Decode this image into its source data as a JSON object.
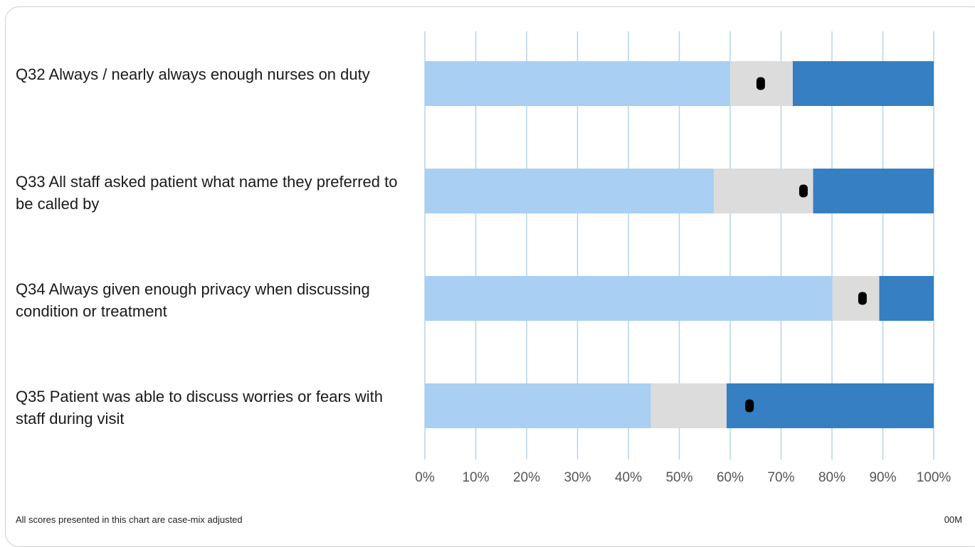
{
  "chart_data": {
    "type": "bar",
    "stacked": true,
    "orientation": "horizontal",
    "categories": [
      "Q32 Always / nearly always enough nurses on duty",
      "Q33 All staff asked patient what name they preferred to be called by",
      "Q34 Always given enough privacy when discussing condition or treatment",
      "Q35 Patient was able to discuss worries or fears with staff during visit"
    ],
    "segments": [
      {
        "lower": 0,
        "middle_start": 60,
        "upper_start": 72.3,
        "end": 100,
        "point": 66
      },
      {
        "lower": 0,
        "middle_start": 56.8,
        "upper_start": 76.3,
        "end": 100,
        "point": 74.4
      },
      {
        "lower": 0,
        "middle_start": 80.1,
        "upper_start": 89.3,
        "end": 100,
        "point": 86
      },
      {
        "lower": 0,
        "middle_start": 44.4,
        "upper_start": 59.3,
        "end": 100,
        "point": 63.8
      }
    ],
    "x_ticks": [
      "0%",
      "10%",
      "20%",
      "30%",
      "40%",
      "50%",
      "60%",
      "70%",
      "80%",
      "90%",
      "100%"
    ],
    "xlim": [
      0,
      100
    ],
    "grid": true,
    "colors": {
      "lower": "#a9cff3",
      "middle": "#dcdcdc",
      "upper": "#357fc2",
      "point": "#000000",
      "grid": "#b5d3ea"
    }
  },
  "footnote": "All scores presented in this chart are case-mix adjusted",
  "corner_code": "00M"
}
